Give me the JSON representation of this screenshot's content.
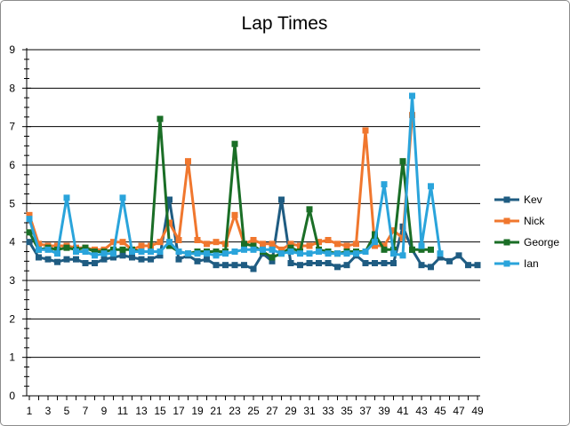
{
  "chart_data": {
    "type": "line",
    "title": "Lap Times",
    "xlabel": "",
    "ylabel": "",
    "xlim": [
      1,
      49
    ],
    "ylim": [
      0,
      9
    ],
    "yticks": [
      0,
      1,
      2,
      3,
      4,
      5,
      6,
      7,
      8,
      9
    ],
    "xticks": [
      1,
      3,
      5,
      7,
      9,
      11,
      13,
      15,
      17,
      19,
      21,
      23,
      25,
      27,
      29,
      31,
      33,
      35,
      37,
      39,
      41,
      43,
      45,
      47,
      49
    ],
    "grid": "horizontal",
    "legend": "right",
    "series": [
      {
        "name": "Kev",
        "color": "#1f5c82",
        "x": [
          1,
          2,
          3,
          4,
          5,
          6,
          7,
          8,
          9,
          10,
          11,
          12,
          13,
          14,
          15,
          16,
          17,
          18,
          19,
          20,
          21,
          22,
          23,
          24,
          25,
          26,
          27,
          28,
          29,
          30,
          31,
          32,
          33,
          34,
          35,
          36,
          37,
          38,
          39,
          40,
          41,
          42,
          43,
          44,
          45,
          46,
          47,
          48,
          49
        ],
        "y": [
          4.0,
          3.6,
          3.55,
          3.48,
          3.55,
          3.55,
          3.45,
          3.45,
          3.55,
          3.6,
          3.65,
          3.6,
          3.55,
          3.55,
          3.65,
          5.1,
          3.55,
          3.65,
          3.5,
          3.55,
          3.4,
          3.4,
          3.4,
          3.4,
          3.3,
          3.7,
          3.5,
          5.1,
          3.45,
          3.4,
          3.45,
          3.45,
          3.45,
          3.35,
          3.4,
          3.65,
          3.45,
          3.45,
          3.45,
          3.45,
          4.4,
          3.8,
          3.4,
          3.35,
          3.6,
          3.5,
          3.65,
          3.4,
          3.4
        ]
      },
      {
        "name": "Nick",
        "color": "#f0772e",
        "x": [
          1,
          2,
          3,
          4,
          5,
          6,
          7,
          8,
          9,
          10,
          11,
          12,
          13,
          14,
          15,
          16,
          17,
          18,
          19,
          20,
          21,
          22,
          23,
          24,
          25,
          26,
          27,
          28,
          29,
          30,
          31,
          32,
          33,
          34,
          35,
          36,
          37,
          38,
          39,
          40,
          41,
          42
        ],
        "y": [
          4.7,
          3.95,
          3.9,
          3.9,
          3.9,
          3.85,
          3.85,
          3.8,
          3.8,
          4.0,
          4.0,
          3.8,
          3.9,
          3.9,
          4.0,
          4.5,
          4.05,
          6.1,
          4.05,
          3.95,
          4.0,
          3.95,
          4.7,
          3.95,
          4.05,
          3.95,
          3.95,
          3.8,
          3.95,
          3.9,
          3.9,
          4.0,
          4.05,
          3.95,
          3.9,
          3.95,
          6.9,
          3.9,
          3.9,
          4.3,
          4.1,
          7.3
        ]
      },
      {
        "name": "George",
        "color": "#1a6e26",
        "x": [
          1,
          2,
          3,
          4,
          5,
          6,
          7,
          8,
          9,
          10,
          11,
          12,
          13,
          14,
          15,
          16,
          17,
          18,
          19,
          20,
          21,
          22,
          23,
          24,
          25,
          26,
          27,
          28,
          29,
          30,
          31,
          32,
          33,
          34,
          35,
          36,
          37,
          38,
          39,
          40,
          41,
          42,
          43,
          44
        ],
        "y": [
          4.25,
          3.8,
          3.85,
          3.8,
          3.85,
          3.8,
          3.85,
          3.75,
          3.75,
          3.8,
          3.8,
          3.8,
          3.75,
          3.75,
          7.2,
          3.9,
          3.75,
          3.7,
          3.75,
          3.75,
          3.75,
          3.75,
          6.55,
          3.95,
          3.9,
          3.75,
          3.6,
          3.7,
          3.85,
          3.75,
          4.85,
          3.8,
          3.75,
          3.7,
          3.75,
          3.75,
          3.75,
          4.2,
          3.8,
          3.8,
          6.1,
          3.8,
          3.8,
          3.8
        ]
      },
      {
        "name": "Ian",
        "color": "#2aa4db",
        "x": [
          1,
          2,
          3,
          4,
          5,
          6,
          7,
          8,
          9,
          10,
          11,
          12,
          13,
          14,
          15,
          16,
          17,
          18,
          19,
          20,
          21,
          22,
          23,
          24,
          25,
          26,
          27,
          28,
          29,
          30,
          31,
          32,
          33,
          34,
          35,
          36,
          37,
          38,
          39,
          40,
          41,
          42,
          43,
          44,
          45
        ],
        "y": [
          4.6,
          3.8,
          3.8,
          3.7,
          5.15,
          3.75,
          3.75,
          3.65,
          3.7,
          3.7,
          5.15,
          3.75,
          3.75,
          3.75,
          3.75,
          4.0,
          3.75,
          3.7,
          3.7,
          3.7,
          3.65,
          3.7,
          3.75,
          3.8,
          3.8,
          3.8,
          3.8,
          3.7,
          3.75,
          3.7,
          3.7,
          3.75,
          3.7,
          3.7,
          3.7,
          3.7,
          3.75,
          4.0,
          5.5,
          3.7,
          3.65,
          7.8,
          3.9,
          5.45,
          3.7
        ]
      }
    ]
  }
}
